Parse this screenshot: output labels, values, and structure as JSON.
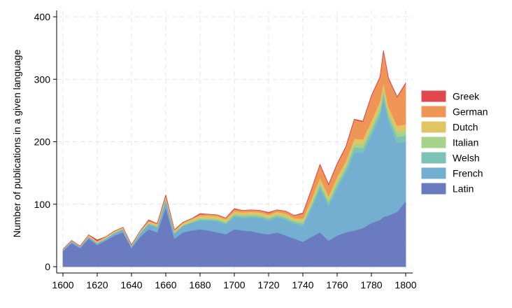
{
  "chart_data": {
    "type": "area",
    "stacked": true,
    "title": "",
    "xlabel": "",
    "ylabel": "Number of publications in a given language",
    "xlim": [
      1600,
      1800
    ],
    "ylim": [
      0,
      400
    ],
    "xticks": [
      "1600",
      "1620",
      "1640",
      "1660",
      "1680",
      "1700",
      "1720",
      "1740",
      "1760",
      "1780",
      "1800"
    ],
    "yticks": [
      "0",
      "100",
      "200",
      "300",
      "400"
    ],
    "grid": true,
    "legend": {
      "position": "right",
      "order": [
        "Greek",
        "German",
        "Dutch",
        "Italian",
        "Welsh",
        "French",
        "Latin"
      ]
    },
    "x": [
      1600,
      1605,
      1610,
      1615,
      1620,
      1625,
      1630,
      1635,
      1640,
      1645,
      1650,
      1655,
      1660,
      1665,
      1670,
      1675,
      1680,
      1685,
      1690,
      1695,
      1700,
      1705,
      1710,
      1715,
      1720,
      1725,
      1730,
      1735,
      1740,
      1745,
      1750,
      1755,
      1760,
      1765,
      1770,
      1775,
      1780,
      1785,
      1787,
      1790,
      1795,
      1800
    ],
    "series": [
      {
        "name": "Latin",
        "color": "#6a7cbf",
        "values": [
          25,
          38,
          30,
          45,
          35,
          42,
          50,
          55,
          30,
          48,
          60,
          55,
          95,
          45,
          55,
          58,
          60,
          58,
          55,
          52,
          60,
          58,
          57,
          54,
          52,
          55,
          50,
          45,
          40,
          48,
          55,
          42,
          50,
          55,
          58,
          62,
          70,
          75,
          80,
          82,
          88,
          105
        ]
      },
      {
        "name": "French",
        "color": "#74aed1",
        "values": [
          2,
          3,
          2,
          3,
          3,
          3,
          4,
          5,
          3,
          6,
          8,
          8,
          12,
          8,
          10,
          12,
          14,
          16,
          18,
          16,
          20,
          20,
          22,
          24,
          22,
          24,
          25,
          24,
          25,
          45,
          70,
          55,
          75,
          95,
          125,
          120,
          140,
          165,
          190,
          150,
          110,
          95
        ]
      },
      {
        "name": "Welsh",
        "color": "#7cc3b5",
        "values": [
          0,
          0,
          0,
          0,
          0,
          0,
          0,
          0,
          0,
          0,
          1,
          1,
          1,
          1,
          1,
          1,
          2,
          2,
          2,
          2,
          3,
          3,
          3,
          3,
          3,
          3,
          3,
          3,
          4,
          5,
          6,
          6,
          7,
          7,
          8,
          8,
          8,
          9,
          9,
          9,
          10,
          10
        ]
      },
      {
        "name": "Italian",
        "color": "#a6d38a",
        "values": [
          0,
          0,
          0,
          1,
          1,
          1,
          1,
          1,
          1,
          1,
          1,
          1,
          2,
          1,
          1,
          2,
          2,
          2,
          2,
          2,
          2,
          2,
          2,
          2,
          2,
          2,
          3,
          2,
          3,
          4,
          5,
          4,
          5,
          5,
          6,
          6,
          6,
          7,
          7,
          6,
          8,
          8
        ]
      },
      {
        "name": "Dutch",
        "color": "#e3c462",
        "values": [
          1,
          1,
          1,
          2,
          2,
          2,
          2,
          2,
          1,
          2,
          3,
          3,
          3,
          3,
          3,
          3,
          4,
          4,
          4,
          4,
          4,
          4,
          4,
          4,
          4,
          4,
          4,
          4,
          5,
          6,
          7,
          6,
          7,
          7,
          8,
          8,
          9,
          9,
          9,
          9,
          10,
          10
        ]
      },
      {
        "name": "German",
        "color": "#ef9657",
        "values": [
          0,
          0,
          0,
          0,
          0,
          0,
          0,
          0,
          0,
          0,
          1,
          1,
          1,
          1,
          1,
          1,
          2,
          2,
          2,
          2,
          3,
          3,
          3,
          3,
          3,
          3,
          4,
          4,
          8,
          15,
          20,
          18,
          20,
          22,
          30,
          28,
          40,
          38,
          50,
          45,
          45,
          65
        ]
      },
      {
        "name": "Greek",
        "color": "#e0474f",
        "values": [
          0,
          0,
          0,
          0,
          2,
          0,
          0,
          0,
          0,
          0,
          1,
          0,
          1,
          0,
          0,
          0,
          1,
          0,
          0,
          0,
          1,
          0,
          0,
          0,
          1,
          0,
          0,
          0,
          1,
          1,
          1,
          1,
          1,
          1,
          1,
          1,
          1,
          1,
          1,
          1,
          1,
          1
        ]
      }
    ]
  }
}
